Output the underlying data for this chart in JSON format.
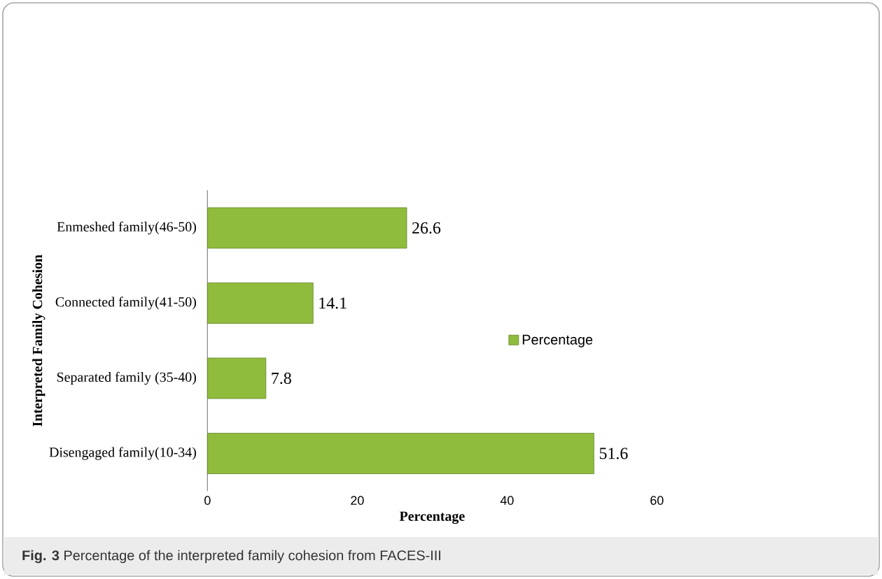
{
  "chart_data": {
    "type": "bar",
    "orientation": "horizontal",
    "xlabel": "Percentage",
    "ylabel": "Interpreted Family Cohesion",
    "categories": [
      "Enmeshed family(46-50)",
      "Connected family(41-50)",
      "Separated family (35-40)",
      "Disengaged family(10-34)"
    ],
    "series": [
      {
        "name": "Percentage",
        "color": "#8fbc3c",
        "values": [
          26.6,
          14.1,
          7.8,
          51.6
        ]
      }
    ],
    "xlim": [
      0,
      60
    ],
    "xticks": [
      0,
      20,
      40,
      60
    ],
    "data_labels": true,
    "legend": "right",
    "annotations": [
      "**Fig. 3** Percentage of the interpreted family cohesion from FACES-III"
    ]
  }
}
